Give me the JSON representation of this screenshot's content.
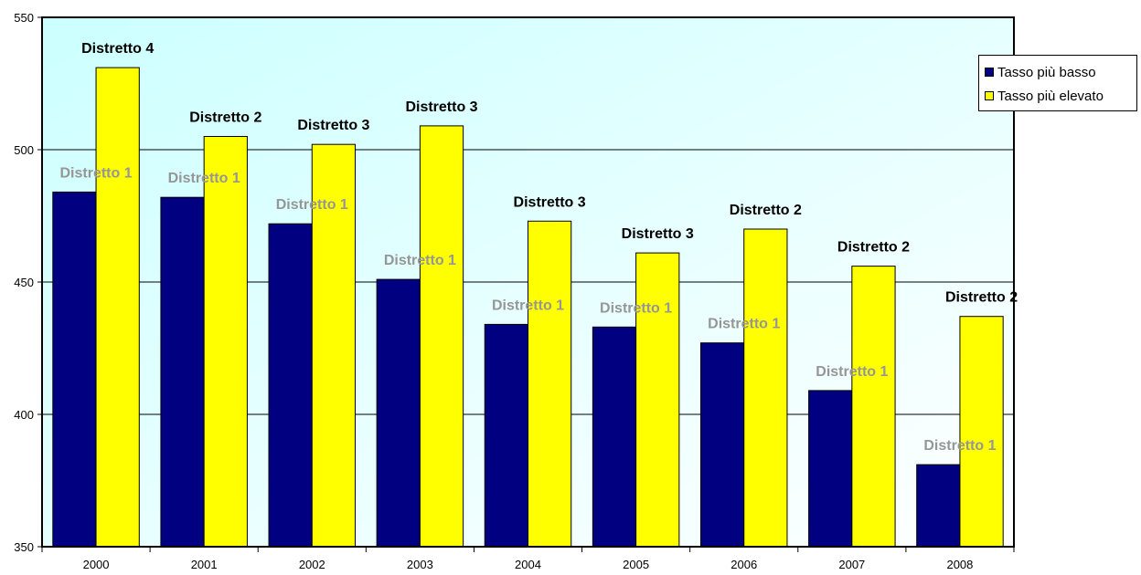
{
  "chart_data": {
    "type": "bar",
    "categories": [
      "2000",
      "2001",
      "2002",
      "2003",
      "2004",
      "2005",
      "2006",
      "2007",
      "2008"
    ],
    "series": [
      {
        "name": "Tasso più basso",
        "color": "#000080",
        "label_color": "#969696",
        "values": [
          484,
          482,
          472,
          451,
          434,
          433,
          427,
          409,
          381
        ],
        "data_labels": [
          "Distretto 1",
          "Distretto 1",
          "Distretto 1",
          "Distretto 1",
          "Distretto 1",
          "Distretto 1",
          "Distretto 1",
          "Distretto 1",
          "Distretto 1"
        ]
      },
      {
        "name": "Tasso più elevato",
        "color": "#FFFF00",
        "label_color": "#000000",
        "values": [
          531,
          505,
          502,
          509,
          473,
          461,
          470,
          456,
          437
        ],
        "data_labels": [
          "Distretto 4",
          "Distretto 2",
          "Distretto 3",
          "Distretto 3",
          "Distretto 3",
          "Distretto 3",
          "Distretto 2",
          "Distretto 2",
          "Distretto 2"
        ]
      }
    ],
    "ylim": [
      350,
      550
    ],
    "yticks": [
      "350",
      "400",
      "450",
      "500",
      "550"
    ],
    "grid": true,
    "legend_position": "right",
    "background_gradient": [
      "#CCFFFF",
      "#FFFFFF"
    ]
  }
}
